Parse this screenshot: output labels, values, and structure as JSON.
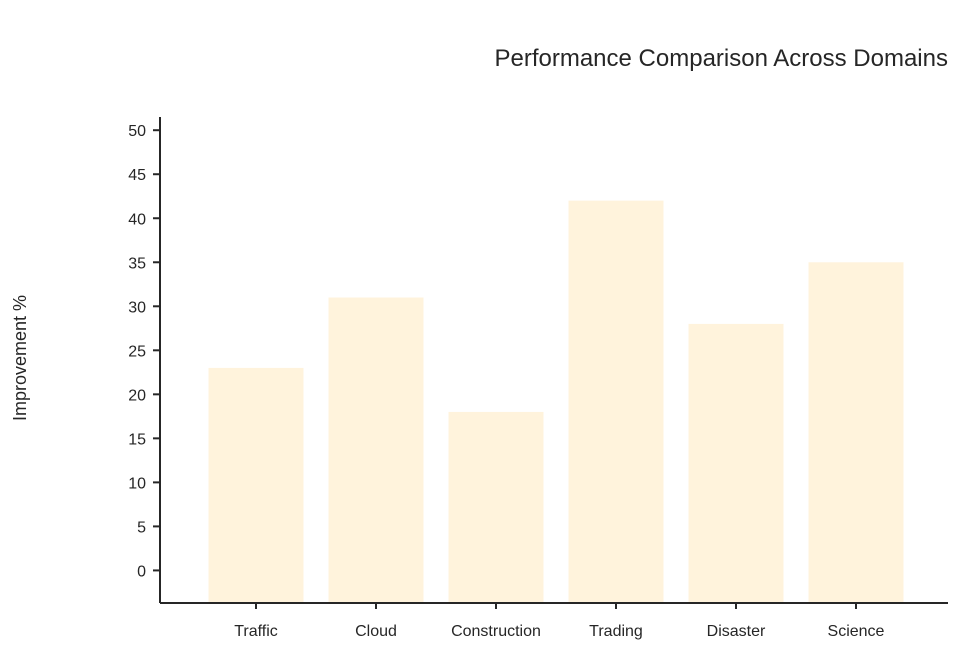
{
  "chart_data": {
    "type": "bar",
    "title": "Performance Comparison Across Domains",
    "xlabel": "",
    "ylabel": "Improvement %",
    "categories": [
      "Traffic",
      "Cloud",
      "Construction",
      "Trading",
      "Disaster",
      "Science"
    ],
    "values": [
      23,
      31,
      18,
      42,
      28,
      35
    ],
    "ylim": [
      -3.7,
      51.5
    ],
    "yticks": [
      0,
      5,
      10,
      15,
      20,
      25,
      30,
      35,
      40,
      45,
      50
    ],
    "grid": false,
    "legend": "none",
    "bar_color": "#fff3dc",
    "axis_color": "#262626"
  }
}
